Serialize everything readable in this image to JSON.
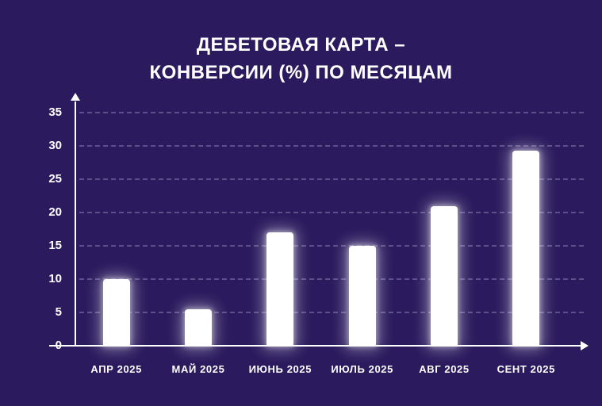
{
  "page": {
    "background": "#2b1b5e"
  },
  "title": {
    "line1": "ДЕБЕТОВАЯ КАРТА –",
    "line2": "КОНВЕРСИИ (%) ПО МЕСЯЦАМ"
  },
  "chart_data": {
    "type": "bar",
    "title": "ДЕБЕТОВАЯ КАРТА – КОНВЕРСИИ (%) ПО МЕСЯЦАМ",
    "categories": [
      "АПР 2025",
      "МАЙ 2025",
      "ИЮНЬ 2025",
      "ИЮЛЬ 2025",
      "АВГ 2025",
      "СЕНТ 2025"
    ],
    "values": [
      10,
      5.5,
      17,
      15,
      21,
      29.3
    ],
    "xlabel": "",
    "ylabel": "",
    "ylim": [
      0,
      35
    ],
    "yticks": [
      0,
      5,
      10,
      15,
      20,
      25,
      30,
      35
    ],
    "grid": true,
    "legend": false,
    "bar_color": "#ffffff",
    "axis_color": "#ffffff",
    "grid_color": "rgba(168,160,205,0.40)",
    "text_color": "#ffffff",
    "background_color": "#2b1b5e"
  }
}
